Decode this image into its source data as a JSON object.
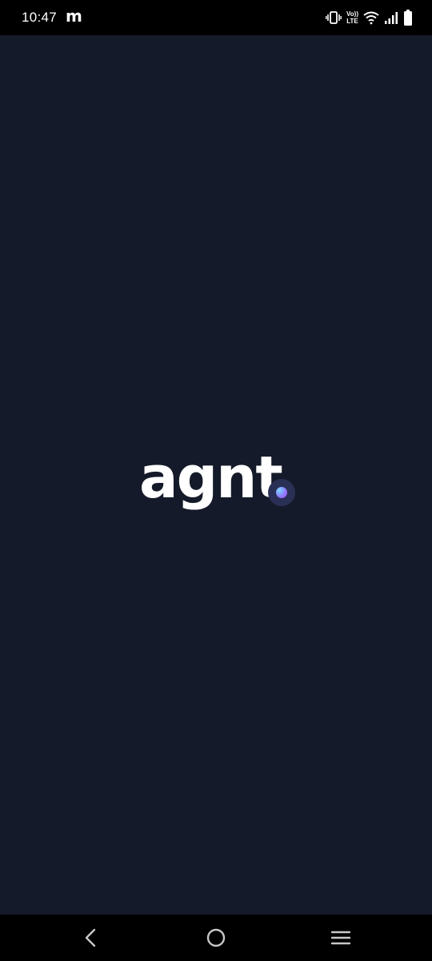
{
  "status_bar": {
    "time": "10:47",
    "notification_glyph": "m",
    "volte_top": "Vo))",
    "volte_bottom": "LTE",
    "icons": [
      "vibrate-icon",
      "volte-icon",
      "wifi-icon",
      "cellular-signal-icon",
      "battery-icon"
    ]
  },
  "splash": {
    "logo_text": "agnt",
    "accent_dot_colors": [
      "#7ad7ff",
      "#8f7bff",
      "#b44cff"
    ],
    "background_color": "#141a29"
  },
  "navigation_bar": {
    "buttons": [
      "back-icon",
      "home-icon",
      "recents-icon"
    ]
  }
}
